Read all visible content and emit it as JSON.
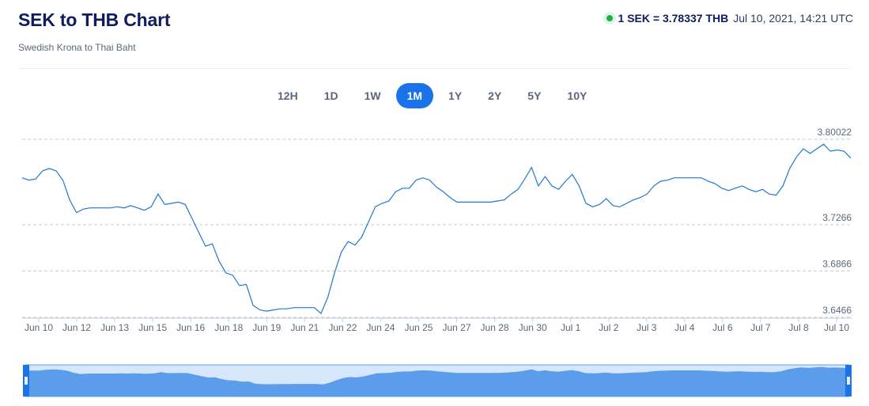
{
  "header": {
    "title": "SEK to THB Chart",
    "subtitle": "Swedish Krona to Thai Baht",
    "rate_text": "1 SEK = 3.78337 THB",
    "timestamp": "Jul 10, 2021, 14:21 UTC"
  },
  "ranges": {
    "options": [
      "12H",
      "1D",
      "1W",
      "1M",
      "1Y",
      "2Y",
      "5Y",
      "10Y"
    ],
    "selected": "1M"
  },
  "colors": {
    "accent": "#1a73e8",
    "line": "#1f78d1",
    "live": "#1fb04a",
    "navigator_fill": "#5b9ceb"
  },
  "chart_data": {
    "type": "line",
    "title": "SEK to THB Chart",
    "x_tick_labels": [
      "Jun 10",
      "Jun 12",
      "Jun 13",
      "Jun 15",
      "Jun 16",
      "Jun 18",
      "Jun 19",
      "Jun 21",
      "Jun 22",
      "Jun 24",
      "Jun 25",
      "Jun 27",
      "Jun 28",
      "Jun 30",
      "Jul 1",
      "Jul 2",
      "Jul 3",
      "Jul 4",
      "Jul 6",
      "Jul 7",
      "Jul 8",
      "Jul 10"
    ],
    "y_tick_labels": [
      "3.6466",
      "3.6866",
      "3.7266",
      "3.80022"
    ],
    "y_ticks": [
      3.6466,
      3.6866,
      3.7266,
      3.80022
    ],
    "ylim": [
      3.6466,
      3.80022
    ],
    "grid": true,
    "series": [
      {
        "values": [
          3.767,
          3.765,
          3.766,
          3.773,
          3.775,
          3.773,
          3.765,
          3.748,
          3.737,
          3.74,
          3.741,
          3.741,
          3.741,
          3.741,
          3.742,
          3.741,
          3.743,
          3.741,
          3.739,
          3.742,
          3.753,
          3.744,
          3.745,
          3.746,
          3.744,
          3.732,
          3.72,
          3.708,
          3.71,
          3.695,
          3.685,
          3.683,
          3.674,
          3.675,
          3.657,
          3.653,
          3.652,
          3.653,
          3.654,
          3.654,
          3.655,
          3.655,
          3.655,
          3.655,
          3.65,
          3.664,
          3.685,
          3.703,
          3.712,
          3.709,
          3.716,
          3.729,
          3.742,
          3.745,
          3.747,
          3.755,
          3.758,
          3.758,
          3.765,
          3.767,
          3.765,
          3.759,
          3.755,
          3.75,
          3.746,
          3.746,
          3.746,
          3.746,
          3.746,
          3.746,
          3.747,
          3.748,
          3.753,
          3.757,
          3.766,
          3.776,
          3.76,
          3.768,
          3.76,
          3.757,
          3.764,
          3.77,
          3.76,
          3.745,
          3.742,
          3.744,
          3.749,
          3.743,
          3.742,
          3.745,
          3.748,
          3.75,
          3.753,
          3.76,
          3.764,
          3.765,
          3.767,
          3.767,
          3.767,
          3.767,
          3.767,
          3.764,
          3.762,
          3.758,
          3.756,
          3.758,
          3.76,
          3.757,
          3.755,
          3.757,
          3.753,
          3.752,
          3.76,
          3.775,
          3.785,
          3.792,
          3.788,
          3.792,
          3.796,
          3.79,
          3.791,
          3.79,
          3.784
        ]
      }
    ]
  }
}
